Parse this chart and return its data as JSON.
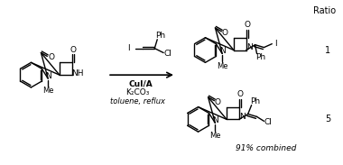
{
  "title": "",
  "background": "#ffffff",
  "text_color": "#000000",
  "line_color": "#000000",
  "figsize": [
    3.8,
    1.83
  ],
  "dpi": 100,
  "ratio_label": "Ratio",
  "ratio_1": "1",
  "ratio_5": "5",
  "yield_text": "91% combined",
  "reagents_line1": "CuI/A",
  "reagents_line2": "K₂CO₃",
  "reagents_line3": "toluene, reflux"
}
